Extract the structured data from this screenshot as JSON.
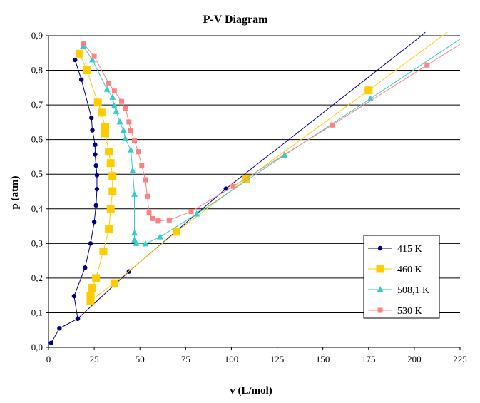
{
  "chart_data": {
    "type": "line",
    "title": "P-V Diagram",
    "xlabel": "v (L/mol)",
    "ylabel": "p (atm)",
    "xlim": [
      0,
      225
    ],
    "ylim": [
      0,
      0.9
    ],
    "x_ticks": [
      "0",
      "25",
      "50",
      "75",
      "100",
      "125",
      "150",
      "175",
      "200",
      "225"
    ],
    "y_ticks": [
      "0,0",
      "0,1",
      "0,2",
      "0,3",
      "0,4",
      "0,5",
      "0,6",
      "0,7",
      "0,8",
      "0,9"
    ],
    "grid": "horizontal",
    "legend_position": "right",
    "series": [
      {
        "name": "415 K",
        "color": "#000080",
        "marker": "circle",
        "points": [
          [
            1.5,
            0.013
          ],
          [
            6,
            0.055
          ],
          [
            16,
            0.083
          ],
          [
            14,
            0.148
          ],
          [
            20,
            0.23
          ],
          [
            23,
            0.3
          ],
          [
            25,
            0.362
          ],
          [
            26,
            0.41
          ],
          [
            26.5,
            0.457
          ],
          [
            26.5,
            0.497
          ],
          [
            26,
            0.525
          ],
          [
            25.5,
            0.557
          ],
          [
            25.5,
            0.585
          ],
          [
            24,
            0.627
          ],
          [
            23.5,
            0.663
          ],
          [
            18,
            0.773
          ],
          [
            14.5,
            0.83
          ]
        ],
        "tail": [
          [
            16,
            0.083
          ],
          [
            44,
            0.219
          ],
          [
            97,
            0.458
          ],
          [
            202,
            0.892
          ],
          [
            206,
            0.91
          ]
        ]
      },
      {
        "name": "460 K",
        "color": "#FFCC00",
        "marker": "square",
        "points": [
          [
            23,
            0.135
          ],
          [
            23,
            0.148
          ],
          [
            24,
            0.172
          ],
          [
            26,
            0.2
          ],
          [
            30,
            0.277
          ],
          [
            33,
            0.342
          ],
          [
            34,
            0.4
          ],
          [
            35,
            0.451
          ],
          [
            35,
            0.495
          ],
          [
            34,
            0.532
          ],
          [
            33,
            0.565
          ],
          [
            31,
            0.618
          ],
          [
            31,
            0.637
          ],
          [
            29,
            0.678
          ],
          [
            27,
            0.707
          ],
          [
            21,
            0.8
          ],
          [
            17,
            0.848
          ]
        ],
        "tail": [
          [
            23,
            0.135
          ],
          [
            36,
            0.185
          ],
          [
            70,
            0.334
          ],
          [
            108,
            0.485
          ],
          [
            175,
            0.742
          ],
          [
            218,
            0.91
          ]
        ]
      },
      {
        "name": "508,1 K",
        "color": "#33CCCC",
        "marker": "triangle",
        "points": [
          [
            53,
            0.299
          ],
          [
            48,
            0.3
          ],
          [
            47,
            0.31
          ],
          [
            47,
            0.33
          ],
          [
            47,
            0.442
          ],
          [
            46,
            0.51
          ],
          [
            45,
            0.57
          ],
          [
            42,
            0.603
          ],
          [
            41,
            0.626
          ],
          [
            39,
            0.651
          ],
          [
            37,
            0.681
          ],
          [
            36,
            0.697
          ],
          [
            35,
            0.722
          ],
          [
            32,
            0.745
          ],
          [
            24,
            0.83
          ],
          [
            19,
            0.87
          ]
        ],
        "tail": [
          [
            53,
            0.299
          ],
          [
            61,
            0.319
          ],
          [
            81,
            0.385
          ],
          [
            129,
            0.555
          ],
          [
            176,
            0.718
          ],
          [
            225,
            0.89
          ]
        ]
      },
      {
        "name": "530 K",
        "color": "#FF8080",
        "marker": "square-small",
        "points": [
          [
            60,
            0.365
          ],
          [
            57,
            0.372
          ],
          [
            55,
            0.388
          ],
          [
            54,
            0.436
          ],
          [
            53,
            0.484
          ],
          [
            51,
            0.525
          ],
          [
            49,
            0.565
          ],
          [
            47,
            0.597
          ],
          [
            45,
            0.627
          ],
          [
            44,
            0.651
          ],
          [
            42,
            0.69
          ],
          [
            40,
            0.71
          ],
          [
            36,
            0.74
          ],
          [
            33,
            0.762
          ],
          [
            25,
            0.84
          ],
          [
            19,
            0.878
          ]
        ],
        "tail": [
          [
            60,
            0.365
          ],
          [
            66,
            0.368
          ],
          [
            78,
            0.392
          ],
          [
            101,
            0.465
          ],
          [
            155,
            0.642
          ],
          [
            207,
            0.815
          ],
          [
            225,
            0.875
          ]
        ]
      }
    ]
  }
}
